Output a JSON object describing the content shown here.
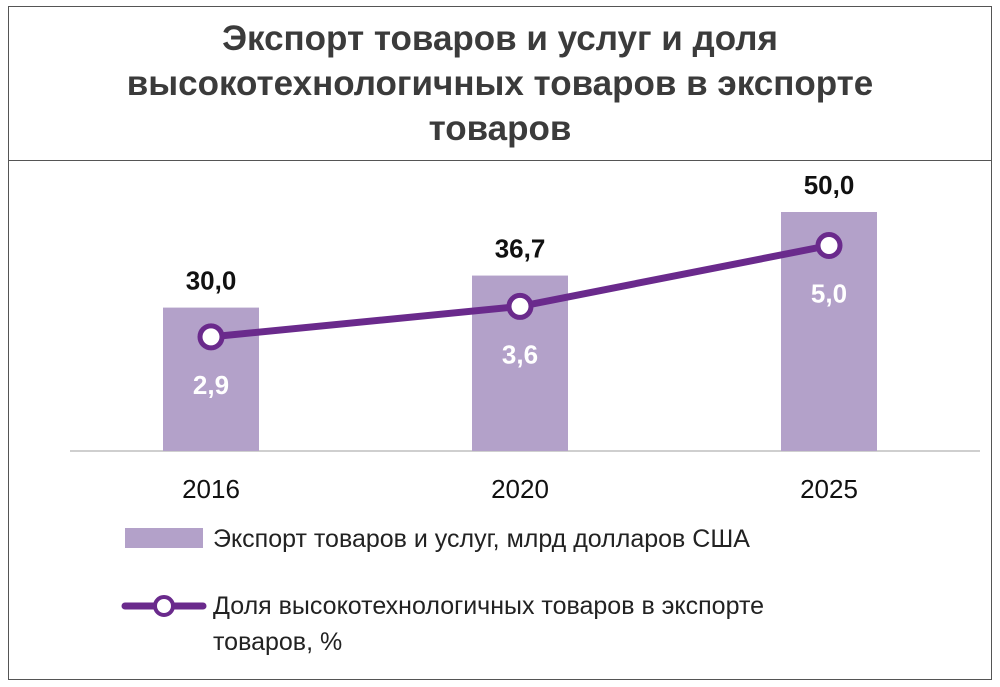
{
  "colors": {
    "bar": "#b3a1c9",
    "line": "#6a2a8c",
    "marker_fill": "#ffffff",
    "axis": "#bfbfbf"
  },
  "chart_data": {
    "type": "bar",
    "title": "Экспорт товаров и услуг и доля высокотехнологичных товаров в экспорте товаров",
    "categories": [
      "2016",
      "2020",
      "2025"
    ],
    "series": [
      {
        "name": "Экспорт товаров и услуг, млрд  долларов США",
        "type": "bar",
        "values": [
          30.0,
          36.7,
          50.0
        ],
        "labels": [
          "30,0",
          "36,7",
          "50,0"
        ]
      },
      {
        "name": "Доля высокотехнологичных товаров в экспорте товаров, %",
        "type": "line",
        "values": [
          2.9,
          3.6,
          5.0
        ],
        "labels": [
          "2,9",
          "3,6",
          "5,0"
        ]
      }
    ],
    "legend_position": "bottom",
    "grid": false
  }
}
